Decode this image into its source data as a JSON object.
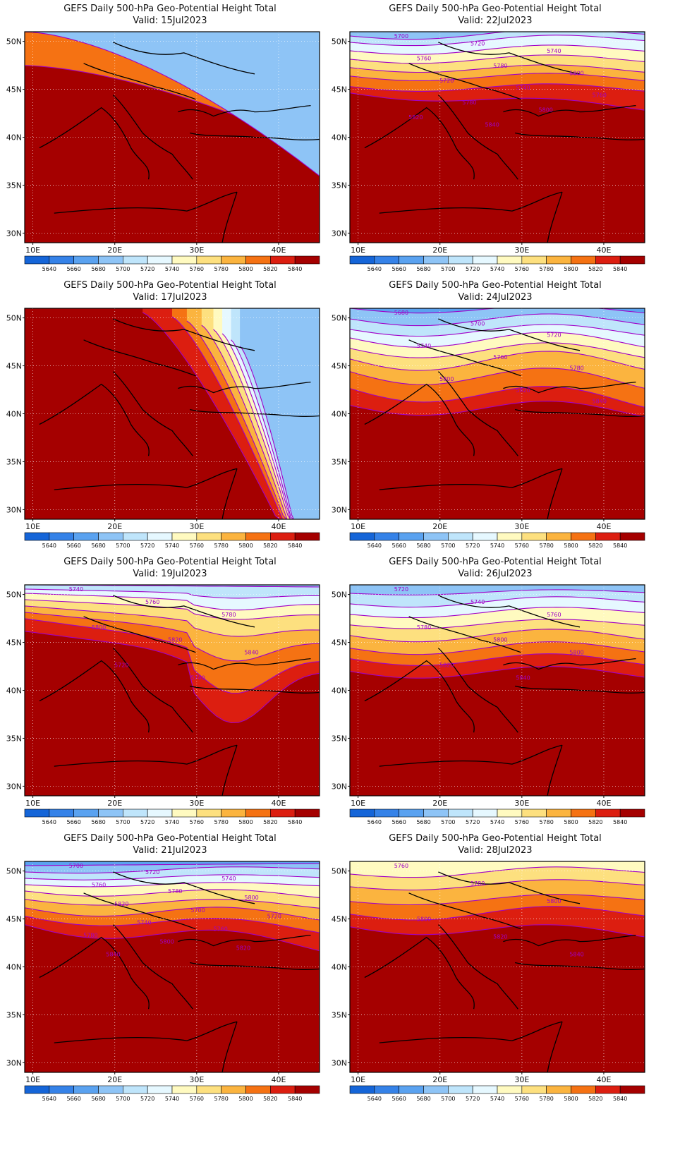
{
  "figure": {
    "panels": [
      {
        "title": "GEFS Daily 500-hPa Geo-Potential Height Total",
        "valid": "Valid: 15Jul2023",
        "contour_labels": []
      },
      {
        "title": "GEFS Daily 500-hPa Geo-Potential Height Total",
        "valid": "Valid: 22Jul2023",
        "contour_labels": [
          "5700",
          "5720",
          "5740",
          "5760",
          "5780",
          "5800",
          "5720",
          "5740",
          "5760",
          "5780",
          "5800",
          "5820",
          "5840"
        ]
      },
      {
        "title": "GEFS Daily 500-hPa Geo-Potential Height Total",
        "valid": "Valid: 17Jul2023",
        "contour_labels": []
      },
      {
        "title": "GEFS Daily 500-hPa Geo-Potential Height Total",
        "valid": "Valid: 24Jul2023",
        "contour_labels": [
          "5680",
          "5700",
          "5720",
          "5740",
          "5760",
          "5780",
          "5800",
          "5820",
          "5840"
        ]
      },
      {
        "title": "GEFS Daily 500-hPa Geo-Potential Height Total",
        "valid": "Valid: 19Jul2023",
        "contour_labels": [
          "5740",
          "5760",
          "5780",
          "5800",
          "5820",
          "5840",
          "5720",
          "5740"
        ]
      },
      {
        "title": "GEFS Daily 500-hPa Geo-Potential Height Total",
        "valid": "Valid: 26Jul2023",
        "contour_labels": [
          "5720",
          "5740",
          "5760",
          "5780",
          "5800",
          "5800",
          "5820",
          "5840"
        ]
      },
      {
        "title": "GEFS Daily 500-hPa Geo-Potential Height Total",
        "valid": "Valid: 21Jul2023",
        "contour_labels": [
          "5700",
          "5720",
          "5740",
          "5760",
          "5780",
          "5800",
          "5820",
          "5700",
          "5720",
          "5740",
          "5760",
          "5780",
          "5800",
          "5820",
          "5840"
        ]
      },
      {
        "title": "GEFS Daily 500-hPa Geo-Potential Height Total",
        "valid": "Valid: 28Jul2023",
        "contour_labels": [
          "5760",
          "5780",
          "5800",
          "5800",
          "5820",
          "5840"
        ]
      }
    ],
    "lat_ticks": [
      "50N",
      "45N",
      "40N",
      "35N",
      "30N"
    ],
    "lon_ticks": [
      "10E",
      "20E",
      "30E",
      "40E"
    ],
    "colorbar": {
      "labels": [
        "5640",
        "5660",
        "5680",
        "5700",
        "5720",
        "5740",
        "5760",
        "5780",
        "5800",
        "5820",
        "5840"
      ],
      "colors": [
        "#1565d8",
        "#3582e8",
        "#5aa2f0",
        "#8ec4f6",
        "#bfe5fb",
        "#e6f8ff",
        "#fffac0",
        "#fde07f",
        "#fbb43f",
        "#f57213",
        "#dc1e10",
        "#a50000"
      ]
    },
    "contour_color": "#a000c8"
  }
}
